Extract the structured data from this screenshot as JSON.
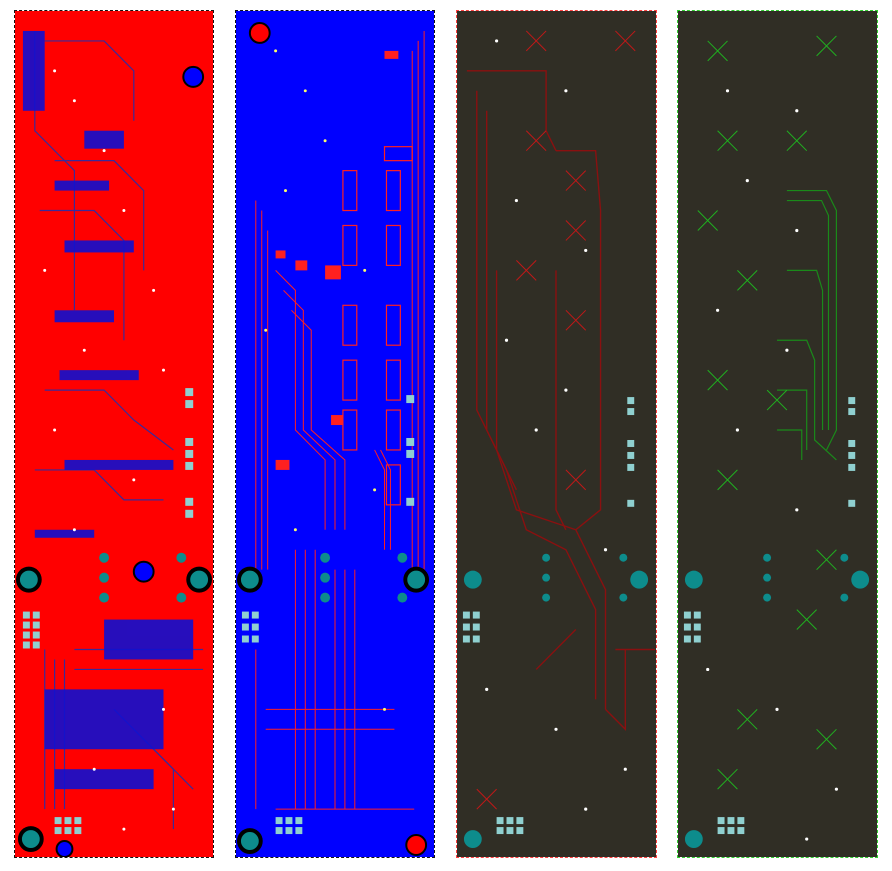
{
  "layers": [
    {
      "id": "top-copper",
      "fill": "#ff0000",
      "trace": "#3a2a9a",
      "accent": "#0000ff"
    },
    {
      "id": "bottom-copper",
      "fill": "#0000ff",
      "trace": "#ff2020",
      "accent": "#ff0000"
    },
    {
      "id": "inner-signal-red",
      "fill": "#302e25",
      "trace": "#8a1010",
      "accent": "#c01818"
    },
    {
      "id": "inner-signal-green",
      "fill": "#302e25",
      "trace": "#1a8a1a",
      "accent": "#20b020"
    }
  ],
  "colors": {
    "mounting_hole": "#0d8c8c",
    "via": "#ffffff",
    "pad": "#8fd0d0",
    "outline_dark": "#000000",
    "outline_red": "#ff4040",
    "outline_green": "#30d030"
  }
}
